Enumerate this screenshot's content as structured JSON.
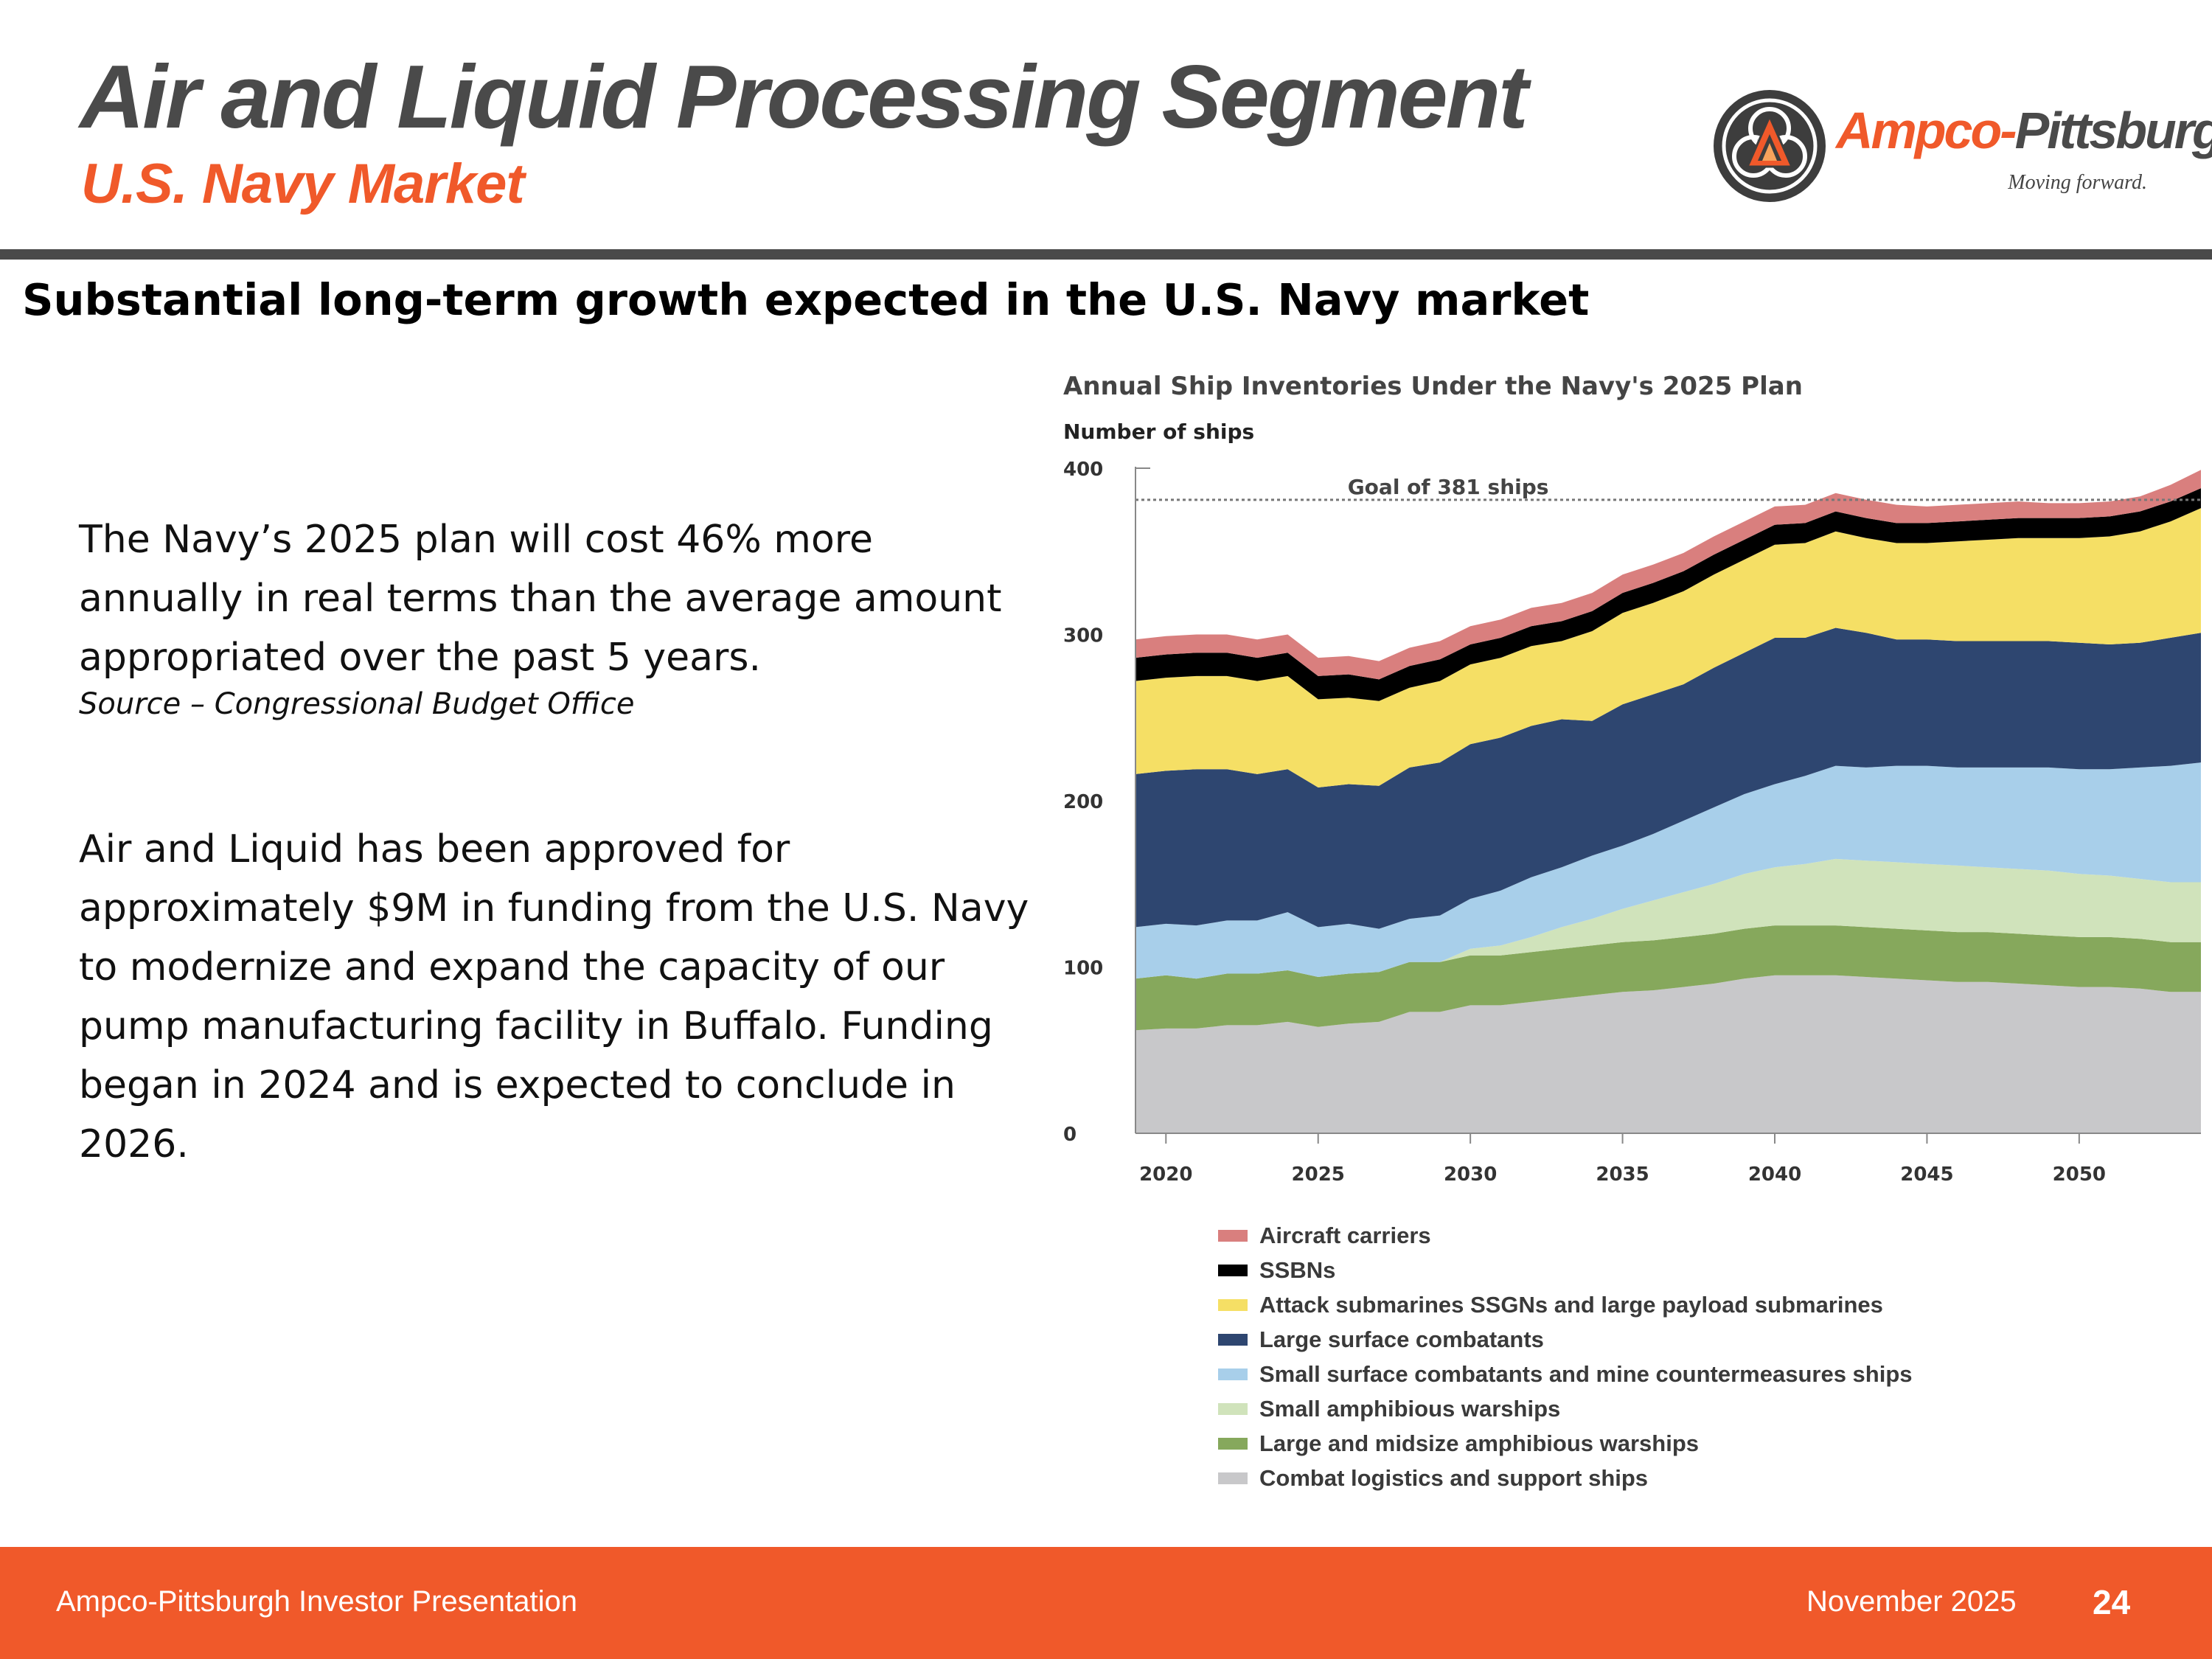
{
  "header": {
    "title": "Air and Liquid Processing Segment",
    "subtitle": "U.S. Navy Market"
  },
  "logo": {
    "name_part1": "Ampco-",
    "name_part2": "Pittsburgh",
    "tagline": "Moving forward."
  },
  "headline": "Substantial long-term growth expected in the U.S. Navy market",
  "body": {
    "paragraph1": "The Navy’s 2025 plan will cost 46% more annually in real terms than the average amount appropriated over the past 5 years.",
    "source": "Source – Congressional Budget Office",
    "paragraph2": "Air and Liquid has been approved for approximately $9M in funding from the U.S. Navy to modernize and expand the capacity of our pump manufacturing facility in Buffalo. Funding began in 2024 and is expected to conclude in 2026."
  },
  "footer": {
    "left": "Ampco-Pittsburgh Investor Presentation",
    "date": "November 2025",
    "page": "24"
  },
  "chart_data": {
    "type": "area",
    "stacked": true,
    "title": "Annual Ship Inventories Under the Navy's 2025 Plan",
    "ylabel": "Number of ships",
    "xlabel": "",
    "xlim": [
      2019,
      2054
    ],
    "ylim": [
      0,
      400
    ],
    "xticks": [
      2020,
      2025,
      2030,
      2035,
      2040,
      2045,
      2050
    ],
    "yticks": [
      0,
      100,
      200,
      300,
      400
    ],
    "goal": {
      "value": 381,
      "label": "Goal of 381 ships"
    },
    "x": [
      2019,
      2020,
      2021,
      2022,
      2023,
      2024,
      2025,
      2026,
      2027,
      2028,
      2029,
      2030,
      2031,
      2032,
      2033,
      2034,
      2035,
      2036,
      2037,
      2038,
      2039,
      2040,
      2041,
      2042,
      2043,
      2044,
      2045,
      2046,
      2047,
      2048,
      2049,
      2050,
      2051,
      2052,
      2053,
      2054
    ],
    "series": [
      {
        "name": "Combat logistics and support ships",
        "color": "#c8c8ca",
        "values": [
          62,
          63,
          63,
          65,
          65,
          67,
          64,
          66,
          67,
          73,
          73,
          77,
          77,
          79,
          81,
          83,
          85,
          86,
          88,
          90,
          93,
          95,
          95,
          95,
          94,
          93,
          92,
          91,
          91,
          90,
          89,
          88,
          88,
          87,
          85,
          85
        ]
      },
      {
        "name": "Large and midsize amphibious warships",
        "color": "#86a85c",
        "values": [
          31,
          32,
          30,
          31,
          31,
          31,
          30,
          30,
          30,
          30,
          30,
          30,
          30,
          30,
          30,
          30,
          30,
          30,
          30,
          30,
          30,
          30,
          30,
          30,
          30,
          30,
          30,
          30,
          30,
          30,
          30,
          30,
          30,
          30,
          30,
          30
        ]
      },
      {
        "name": "Small amphibious warships",
        "color": "#d0e3bb",
        "values": [
          0,
          0,
          0,
          0,
          0,
          0,
          0,
          0,
          0,
          0,
          0,
          4,
          6,
          9,
          13,
          16,
          20,
          24,
          27,
          30,
          33,
          35,
          37,
          40,
          40,
          40,
          40,
          40,
          39,
          39,
          39,
          38,
          37,
          36,
          36,
          36
        ]
      },
      {
        "name": "Small surface combatants and mine countermeasures ships",
        "color": "#a8cfea",
        "values": [
          31,
          31,
          32,
          32,
          32,
          35,
          30,
          30,
          26,
          26,
          28,
          30,
          33,
          36,
          36,
          38,
          38,
          40,
          43,
          46,
          48,
          50,
          53,
          56,
          56,
          58,
          59,
          59,
          60,
          61,
          62,
          63,
          64,
          67,
          70,
          72
        ]
      },
      {
        "name": "Large surface combatants",
        "color": "#2e4670",
        "values": [
          92,
          92,
          94,
          91,
          88,
          86,
          84,
          84,
          86,
          91,
          92,
          93,
          92,
          91,
          89,
          81,
          85,
          84,
          82,
          84,
          85,
          88,
          83,
          83,
          81,
          76,
          76,
          76,
          76,
          76,
          76,
          76,
          75,
          75,
          77,
          78
        ]
      },
      {
        "name": "Attack submarines SSGNs and large payload submarines",
        "color": "#f5df65",
        "values": [
          56,
          56,
          56,
          56,
          56,
          56,
          53,
          52,
          51,
          48,
          49,
          48,
          48,
          48,
          47,
          54,
          55,
          55,
          56,
          56,
          56,
          56,
          57,
          58,
          57,
          58,
          58,
          60,
          61,
          62,
          62,
          63,
          65,
          67,
          70,
          75
        ]
      },
      {
        "name": "SSBNs",
        "color": "#000000",
        "values": [
          14,
          14,
          14,
          14,
          14,
          14,
          14,
          14,
          13,
          13,
          13,
          12,
          12,
          12,
          12,
          12,
          12,
          12,
          12,
          12,
          12,
          12,
          12,
          12,
          12,
          12,
          12,
          12,
          12,
          12,
          12,
          12,
          12,
          12,
          12,
          12
        ]
      },
      {
        "name": "Aircraft carriers",
        "color": "#d97f7e",
        "values": [
          11,
          11,
          11,
          11,
          11,
          11,
          11,
          11,
          11,
          11,
          11,
          11,
          11,
          11,
          11,
          11,
          11,
          11,
          11,
          11,
          11,
          11,
          11,
          11,
          11,
          11,
          10,
          10,
          10,
          10,
          9,
          9,
          9,
          9,
          10,
          11
        ]
      }
    ],
    "legend": [
      {
        "label": "Aircraft carriers",
        "color": "#d97f7e"
      },
      {
        "label": "SSBNs",
        "color": "#000000"
      },
      {
        "label": "Attack submarines SSGNs and large payload submarines",
        "color": "#f5df65"
      },
      {
        "label": "Large surface combatants",
        "color": "#2e4670"
      },
      {
        "label": "Small surface combatants and mine countermeasures ships",
        "color": "#a8cfea"
      },
      {
        "label": "Small amphibious warships",
        "color": "#d0e3bb"
      },
      {
        "label": "Large and midsize amphibious warships",
        "color": "#86a85c"
      },
      {
        "label": "Combat logistics and support ships",
        "color": "#c8c8ca"
      }
    ]
  }
}
